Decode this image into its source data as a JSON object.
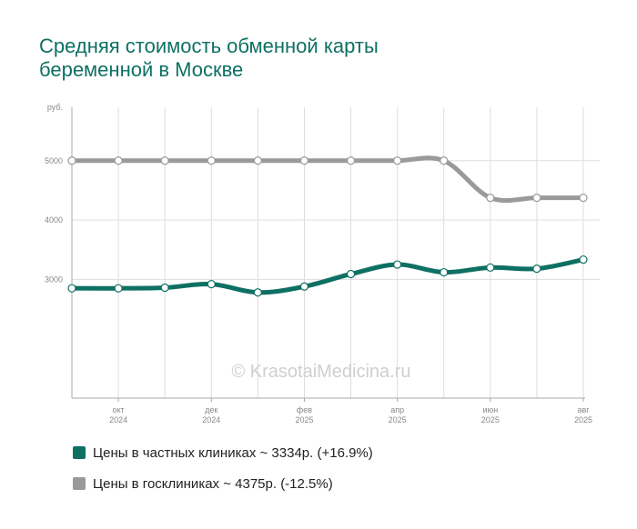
{
  "title": {
    "line1": "Средняя стоимость обменной карты",
    "line2": "беременной в Москве"
  },
  "watermark": "© KrasotaiMedicina.ru",
  "legend": [
    {
      "label": "Цены в частных клиниках ~ 3334р. (+16.9%)",
      "color": "#0e7063"
    },
    {
      "label": "Цены в госклиниках ~ 4375р. (-12.5%)",
      "color": "#9a9a9a"
    }
  ],
  "chart_data": {
    "type": "line",
    "y_unit": "руб.",
    "ylim": [
      1000,
      5900
    ],
    "y_ticks": [
      {
        "value": 3000,
        "label": "3000"
      },
      {
        "value": 4000,
        "label": "4000"
      },
      {
        "value": 5000,
        "label": "5000"
      }
    ],
    "x_ticks": [
      {
        "index": 1,
        "month": "окт",
        "year": "2024"
      },
      {
        "index": 3,
        "month": "дек",
        "year": "2024"
      },
      {
        "index": 5,
        "month": "фев",
        "year": "2025"
      },
      {
        "index": 7,
        "month": "апр",
        "year": "2025"
      },
      {
        "index": 9,
        "month": "июн",
        "year": "2025"
      },
      {
        "index": 11,
        "month": "авг",
        "year": "2025"
      }
    ],
    "x": [
      "2024-09",
      "2024-10",
      "2024-11",
      "2024-12",
      "2025-01",
      "2025-02",
      "2025-03",
      "2025-04",
      "2025-05",
      "2025-06",
      "2025-07",
      "2025-08"
    ],
    "series": [
      {
        "name": "Цены в госклиниках",
        "color": "#9a9a9a",
        "values": [
          5000,
          5000,
          5000,
          5000,
          5000,
          5000,
          5000,
          5000,
          5000,
          4375,
          4375,
          4375
        ]
      },
      {
        "name": "Цены в частных клиниках",
        "color": "#0e7063",
        "values": [
          2850,
          2850,
          2860,
          2920,
          2780,
          2880,
          3090,
          3250,
          3120,
          3200,
          3180,
          3334
        ]
      }
    ],
    "grid": true,
    "legend_position": "bottom-left"
  }
}
